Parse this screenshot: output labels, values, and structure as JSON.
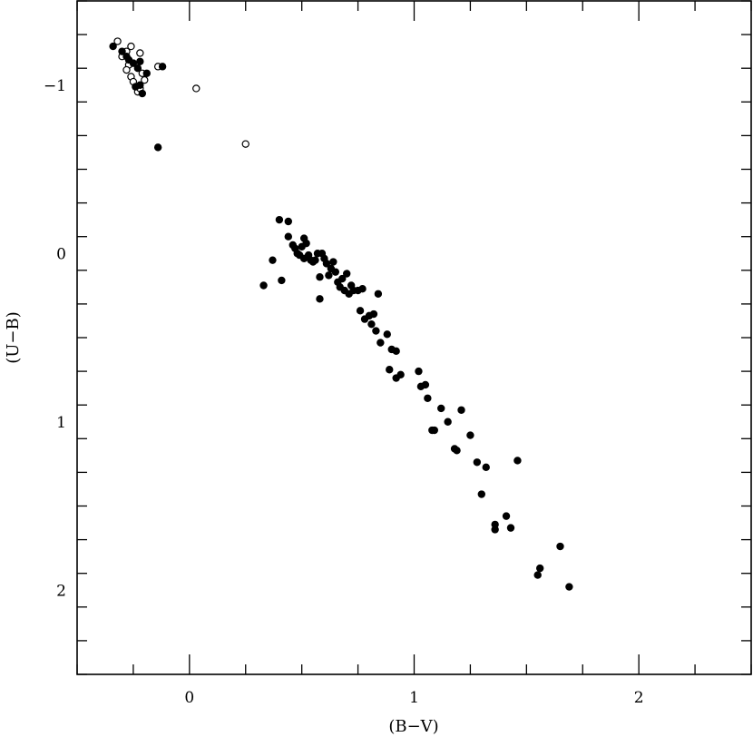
{
  "chart_data": {
    "type": "scatter",
    "title": "",
    "xlabel": "(B−V)",
    "ylabel": "(U−B)",
    "xlim": [
      -0.5,
      2.5
    ],
    "ylim": [
      2.5,
      -1.5
    ],
    "y_inverted": true,
    "grid": false,
    "xticks": [
      {
        "value": 0,
        "label": "0"
      },
      {
        "value": 1,
        "label": "1"
      },
      {
        "value": 2,
        "label": "2"
      }
    ],
    "yticks": [
      {
        "value": -1,
        "label": "−1"
      },
      {
        "value": 0,
        "label": "0"
      },
      {
        "value": 1,
        "label": "1"
      },
      {
        "value": 2,
        "label": "2"
      }
    ],
    "series": [
      {
        "marker": "open-circle",
        "color": "#000000",
        "points": [
          [
            -0.32,
            -1.26
          ],
          [
            -0.3,
            -1.17
          ],
          [
            -0.28,
            -1.2
          ],
          [
            -0.27,
            -1.12
          ],
          [
            -0.28,
            -1.09
          ],
          [
            -0.26,
            -1.05
          ],
          [
            -0.25,
            -1.02
          ],
          [
            -0.23,
            -0.96
          ],
          [
            -0.22,
            -0.98
          ],
          [
            -0.21,
            -1.07
          ],
          [
            -0.2,
            -1.03
          ],
          [
            -0.22,
            -1.19
          ],
          [
            -0.26,
            -1.23
          ],
          [
            -0.14,
            -1.11
          ],
          [
            0.03,
            -0.98
          ],
          [
            0.25,
            -0.65
          ]
        ]
      },
      {
        "marker": "filled-circle",
        "color": "#000000",
        "points": [
          [
            -0.34,
            -1.23
          ],
          [
            -0.3,
            -1.2
          ],
          [
            -0.28,
            -1.17
          ],
          [
            -0.27,
            -1.15
          ],
          [
            -0.25,
            -1.13
          ],
          [
            -0.23,
            -1.1
          ],
          [
            -0.22,
            -1.14
          ],
          [
            -0.19,
            -1.07
          ],
          [
            -0.12,
            -1.11
          ],
          [
            -0.24,
            -0.99
          ],
          [
            -0.22,
            -1.0
          ],
          [
            -0.21,
            -0.95
          ],
          [
            -0.14,
            -0.63
          ],
          [
            0.33,
            0.19
          ],
          [
            0.37,
            0.04
          ],
          [
            0.4,
            -0.2
          ],
          [
            0.41,
            0.16
          ],
          [
            0.44,
            -0.19
          ],
          [
            0.44,
            -0.1
          ],
          [
            0.46,
            -0.05
          ],
          [
            0.47,
            -0.03
          ],
          [
            0.48,
            0.0
          ],
          [
            0.49,
            0.01
          ],
          [
            0.5,
            -0.04
          ],
          [
            0.51,
            -0.09
          ],
          [
            0.51,
            0.03
          ],
          [
            0.52,
            -0.06
          ],
          [
            0.53,
            0.01
          ],
          [
            0.54,
            0.04
          ],
          [
            0.55,
            0.05
          ],
          [
            0.56,
            0.04
          ],
          [
            0.57,
            0.0
          ],
          [
            0.58,
            0.14
          ],
          [
            0.58,
            0.27
          ],
          [
            0.59,
            0.0
          ],
          [
            0.6,
            0.03
          ],
          [
            0.61,
            0.06
          ],
          [
            0.62,
            0.13
          ],
          [
            0.63,
            0.09
          ],
          [
            0.64,
            0.05
          ],
          [
            0.65,
            0.11
          ],
          [
            0.66,
            0.17
          ],
          [
            0.67,
            0.2
          ],
          [
            0.68,
            0.15
          ],
          [
            0.69,
            0.22
          ],
          [
            0.7,
            0.12
          ],
          [
            0.71,
            0.24
          ],
          [
            0.72,
            0.19
          ],
          [
            0.73,
            0.22
          ],
          [
            0.75,
            0.22
          ],
          [
            0.77,
            0.21
          ],
          [
            0.76,
            0.34
          ],
          [
            0.78,
            0.39
          ],
          [
            0.8,
            0.37
          ],
          [
            0.81,
            0.42
          ],
          [
            0.82,
            0.36
          ],
          [
            0.83,
            0.46
          ],
          [
            0.84,
            0.24
          ],
          [
            0.85,
            0.53
          ],
          [
            0.88,
            0.48
          ],
          [
            0.89,
            0.69
          ],
          [
            0.9,
            0.57
          ],
          [
            0.92,
            0.58
          ],
          [
            0.92,
            0.74
          ],
          [
            0.94,
            0.72
          ],
          [
            1.02,
            0.7
          ],
          [
            1.03,
            0.79
          ],
          [
            1.05,
            0.78
          ],
          [
            1.06,
            0.86
          ],
          [
            1.08,
            1.05
          ],
          [
            1.09,
            1.05
          ],
          [
            1.12,
            0.92
          ],
          [
            1.15,
            1.0
          ],
          [
            1.18,
            1.16
          ],
          [
            1.19,
            1.17
          ],
          [
            1.21,
            0.93
          ],
          [
            1.25,
            1.08
          ],
          [
            1.28,
            1.24
          ],
          [
            1.3,
            1.43
          ],
          [
            1.32,
            1.27
          ],
          [
            1.36,
            1.61
          ],
          [
            1.36,
            1.64
          ],
          [
            1.41,
            1.56
          ],
          [
            1.43,
            1.63
          ],
          [
            1.46,
            1.23
          ],
          [
            1.55,
            1.91
          ],
          [
            1.56,
            1.87
          ],
          [
            1.65,
            1.74
          ],
          [
            1.69,
            1.98
          ]
        ]
      }
    ]
  }
}
